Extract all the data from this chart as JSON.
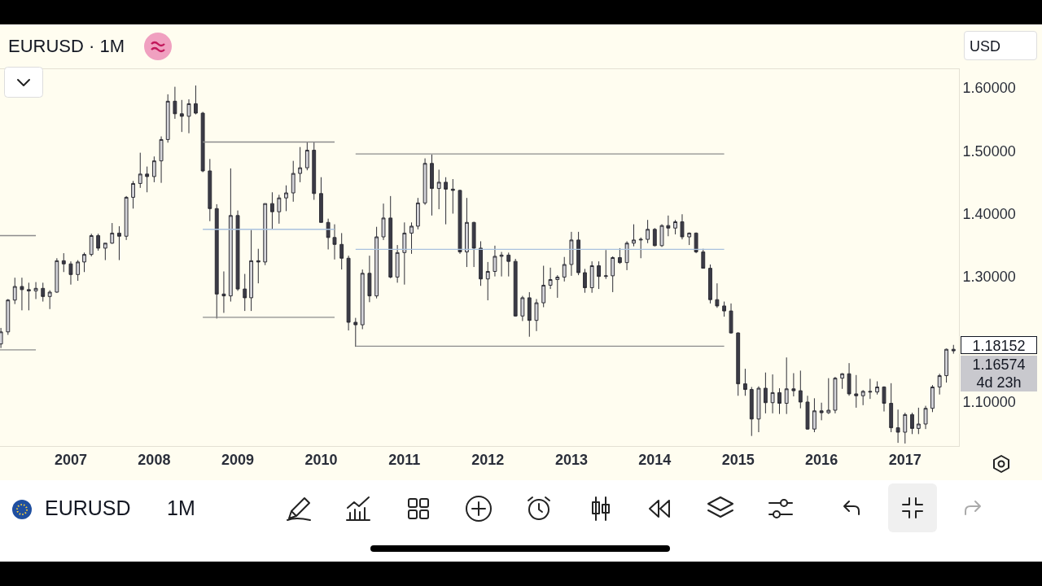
{
  "chart_data": {
    "type": "candlestick",
    "title": "EURUSD · 1M",
    "x": [
      "2006-03",
      "2006-04",
      "2006-05",
      "2006-06",
      "2006-07",
      "2006-08",
      "2006-09",
      "2006-10",
      "2006-11",
      "2006-12",
      "2007-01",
      "2007-02",
      "2007-03",
      "2007-04",
      "2007-05",
      "2007-06",
      "2007-07",
      "2007-08",
      "2007-09",
      "2007-10",
      "2007-11",
      "2007-12",
      "2008-01",
      "2008-02",
      "2008-03",
      "2008-04",
      "2008-05",
      "2008-06",
      "2008-07",
      "2008-08",
      "2008-09",
      "2008-10",
      "2008-11",
      "2008-12",
      "2009-01",
      "2009-02",
      "2009-03",
      "2009-04",
      "2009-05",
      "2009-06",
      "2009-07",
      "2009-08",
      "2009-09",
      "2009-10",
      "2009-11",
      "2009-12",
      "2010-01",
      "2010-02",
      "2010-03",
      "2010-04",
      "2010-05",
      "2010-06",
      "2010-07",
      "2010-08",
      "2010-09",
      "2010-10",
      "2010-11",
      "2010-12",
      "2011-01",
      "2011-02",
      "2011-03",
      "2011-04",
      "2011-05",
      "2011-06",
      "2011-07",
      "2011-08",
      "2011-09",
      "2011-10",
      "2011-11",
      "2011-12",
      "2012-01",
      "2012-02",
      "2012-03",
      "2012-04",
      "2012-05",
      "2012-06",
      "2012-07",
      "2012-08",
      "2012-09",
      "2012-10",
      "2012-11",
      "2012-12",
      "2013-01",
      "2013-02",
      "2013-03",
      "2013-04",
      "2013-05",
      "2013-06",
      "2013-07",
      "2013-08",
      "2013-09",
      "2013-10",
      "2013-11",
      "2013-12",
      "2014-01",
      "2014-02",
      "2014-03",
      "2014-04",
      "2014-05",
      "2014-06",
      "2014-07",
      "2014-08",
      "2014-09",
      "2014-10",
      "2014-11",
      "2014-12",
      "2015-01",
      "2015-02",
      "2015-03",
      "2015-04",
      "2015-05",
      "2015-06",
      "2015-07",
      "2015-08",
      "2015-09",
      "2015-10",
      "2015-11",
      "2015-12",
      "2016-01",
      "2016-02",
      "2016-03",
      "2016-04",
      "2016-05",
      "2016-06",
      "2016-07",
      "2016-08",
      "2016-09",
      "2016-10",
      "2016-11",
      "2016-12",
      "2017-01",
      "2017-02",
      "2017-03",
      "2017-04",
      "2017-05",
      "2017-06",
      "2017-07",
      "2017-08"
    ],
    "ohlc": [
      [
        1.1925,
        1.218,
        1.186,
        1.2117
      ],
      [
        1.2117,
        1.264,
        1.207,
        1.2624
      ],
      [
        1.2624,
        1.298,
        1.256,
        1.284
      ],
      [
        1.284,
        1.298,
        1.246,
        1.279
      ],
      [
        1.279,
        1.29,
        1.246,
        1.277
      ],
      [
        1.277,
        1.291,
        1.264,
        1.281
      ],
      [
        1.281,
        1.29,
        1.26,
        1.268
      ],
      [
        1.268,
        1.278,
        1.248,
        1.275
      ],
      [
        1.275,
        1.329,
        1.274,
        1.325
      ],
      [
        1.325,
        1.337,
        1.307,
        1.32
      ],
      [
        1.32,
        1.324,
        1.287,
        1.303
      ],
      [
        1.303,
        1.326,
        1.293,
        1.323
      ],
      [
        1.323,
        1.338,
        1.307,
        1.335
      ],
      [
        1.335,
        1.368,
        1.332,
        1.365
      ],
      [
        1.365,
        1.368,
        1.341,
        1.345
      ],
      [
        1.345,
        1.353,
        1.326,
        1.353
      ],
      [
        1.353,
        1.385,
        1.352,
        1.369
      ],
      [
        1.369,
        1.38,
        1.326,
        1.364
      ],
      [
        1.364,
        1.428,
        1.358,
        1.426
      ],
      [
        1.426,
        1.452,
        1.408,
        1.448
      ],
      [
        1.448,
        1.497,
        1.441,
        1.463
      ],
      [
        1.463,
        1.475,
        1.434,
        1.459
      ],
      [
        1.459,
        1.491,
        1.45,
        1.484
      ],
      [
        1.484,
        1.523,
        1.449,
        1.518
      ],
      [
        1.518,
        1.59,
        1.513,
        1.579
      ],
      [
        1.579,
        1.602,
        1.551,
        1.559
      ],
      [
        1.559,
        1.581,
        1.53,
        1.555
      ],
      [
        1.555,
        1.582,
        1.528,
        1.575
      ],
      [
        1.575,
        1.604,
        1.558,
        1.56
      ],
      [
        1.56,
        1.562,
        1.466,
        1.468
      ],
      [
        1.468,
        1.487,
        1.388,
        1.408
      ],
      [
        1.408,
        1.415,
        1.233,
        1.272
      ],
      [
        1.272,
        1.308,
        1.242,
        1.269
      ],
      [
        1.269,
        1.472,
        1.26,
        1.397
      ],
      [
        1.397,
        1.405,
        1.277,
        1.28
      ],
      [
        1.28,
        1.304,
        1.245,
        1.266
      ],
      [
        1.266,
        1.374,
        1.245,
        1.325
      ],
      [
        1.325,
        1.344,
        1.289,
        1.323
      ],
      [
        1.323,
        1.416,
        1.318,
        1.416
      ],
      [
        1.416,
        1.434,
        1.375,
        1.403
      ],
      [
        1.403,
        1.43,
        1.384,
        1.425
      ],
      [
        1.425,
        1.445,
        1.404,
        1.433
      ],
      [
        1.433,
        1.484,
        1.419,
        1.464
      ],
      [
        1.464,
        1.506,
        1.45,
        1.473
      ],
      [
        1.473,
        1.514,
        1.469,
        1.501
      ],
      [
        1.501,
        1.514,
        1.422,
        1.432
      ],
      [
        1.432,
        1.458,
        1.386,
        1.386
      ],
      [
        1.386,
        1.392,
        1.343,
        1.362
      ],
      [
        1.362,
        1.383,
        1.327,
        1.351
      ],
      [
        1.351,
        1.369,
        1.311,
        1.329
      ],
      [
        1.329,
        1.333,
        1.214,
        1.227
      ],
      [
        1.227,
        1.234,
        1.188,
        1.223
      ],
      [
        1.223,
        1.311,
        1.216,
        1.305
      ],
      [
        1.305,
        1.333,
        1.259,
        1.269
      ],
      [
        1.269,
        1.379,
        1.265,
        1.363
      ],
      [
        1.363,
        1.416,
        1.358,
        1.393
      ],
      [
        1.393,
        1.428,
        1.297,
        1.299
      ],
      [
        1.299,
        1.35,
        1.29,
        1.338
      ],
      [
        1.338,
        1.386,
        1.287,
        1.369
      ],
      [
        1.369,
        1.386,
        1.336,
        1.38
      ],
      [
        1.38,
        1.425,
        1.375,
        1.417
      ],
      [
        1.417,
        1.488,
        1.414,
        1.48
      ],
      [
        1.48,
        1.494,
        1.397,
        1.44
      ],
      [
        1.44,
        1.47,
        1.407,
        1.45
      ],
      [
        1.45,
        1.458,
        1.383,
        1.439
      ],
      [
        1.439,
        1.455,
        1.4,
        1.437
      ],
      [
        1.437,
        1.438,
        1.336,
        1.339
      ],
      [
        1.339,
        1.425,
        1.315,
        1.386
      ],
      [
        1.386,
        1.387,
        1.315,
        1.345
      ],
      [
        1.345,
        1.356,
        1.285,
        1.296
      ],
      [
        1.296,
        1.323,
        1.262,
        1.308
      ],
      [
        1.308,
        1.349,
        1.3,
        1.332
      ],
      [
        1.332,
        1.339,
        1.3,
        1.334
      ],
      [
        1.334,
        1.338,
        1.3,
        1.324
      ],
      [
        1.324,
        1.328,
        1.236,
        1.237
      ],
      [
        1.237,
        1.269,
        1.229,
        1.266
      ],
      [
        1.266,
        1.275,
        1.204,
        1.23
      ],
      [
        1.23,
        1.264,
        1.213,
        1.258
      ],
      [
        1.258,
        1.317,
        1.251,
        1.286
      ],
      [
        1.286,
        1.314,
        1.28,
        1.295
      ],
      [
        1.295,
        1.302,
        1.266,
        1.299
      ],
      [
        1.299,
        1.331,
        1.292,
        1.319
      ],
      [
        1.319,
        1.371,
        1.301,
        1.358
      ],
      [
        1.358,
        1.371,
        1.302,
        1.306
      ],
      [
        1.306,
        1.312,
        1.274,
        1.282
      ],
      [
        1.282,
        1.324,
        1.274,
        1.317
      ],
      [
        1.317,
        1.324,
        1.28,
        1.3
      ],
      [
        1.3,
        1.342,
        1.296,
        1.301
      ],
      [
        1.301,
        1.332,
        1.275,
        1.33
      ],
      [
        1.33,
        1.345,
        1.32,
        1.322
      ],
      [
        1.322,
        1.356,
        1.31,
        1.353
      ],
      [
        1.353,
        1.383,
        1.348,
        1.358
      ],
      [
        1.358,
        1.362,
        1.329,
        1.359
      ],
      [
        1.359,
        1.39,
        1.353,
        1.375
      ],
      [
        1.375,
        1.377,
        1.348,
        1.349
      ],
      [
        1.349,
        1.383,
        1.347,
        1.381
      ],
      [
        1.381,
        1.397,
        1.364,
        1.377
      ],
      [
        1.377,
        1.39,
        1.367,
        1.387
      ],
      [
        1.387,
        1.399,
        1.359,
        1.363
      ],
      [
        1.363,
        1.37,
        1.35,
        1.369
      ],
      [
        1.369,
        1.37,
        1.337,
        1.339
      ],
      [
        1.339,
        1.344,
        1.313,
        1.313
      ],
      [
        1.313,
        1.319,
        1.257,
        1.263
      ],
      [
        1.263,
        1.289,
        1.25,
        1.253
      ],
      [
        1.253,
        1.26,
        1.236,
        1.245
      ],
      [
        1.245,
        1.257,
        1.209,
        1.21
      ],
      [
        1.21,
        1.211,
        1.11,
        1.129
      ],
      [
        1.129,
        1.153,
        1.11,
        1.12
      ],
      [
        1.12,
        1.124,
        1.046,
        1.073
      ],
      [
        1.073,
        1.125,
        1.052,
        1.122
      ],
      [
        1.122,
        1.147,
        1.082,
        1.099
      ],
      [
        1.099,
        1.144,
        1.082,
        1.115
      ],
      [
        1.115,
        1.122,
        1.081,
        1.098
      ],
      [
        1.098,
        1.171,
        1.081,
        1.121
      ],
      [
        1.121,
        1.146,
        1.109,
        1.118
      ],
      [
        1.118,
        1.15,
        1.09,
        1.1
      ],
      [
        1.1,
        1.11,
        1.056,
        1.057
      ],
      [
        1.057,
        1.106,
        1.052,
        1.086
      ],
      [
        1.086,
        1.099,
        1.071,
        1.083
      ],
      [
        1.083,
        1.138,
        1.081,
        1.087
      ],
      [
        1.087,
        1.14,
        1.082,
        1.138
      ],
      [
        1.138,
        1.146,
        1.121,
        1.145
      ],
      [
        1.145,
        1.162,
        1.11,
        1.113
      ],
      [
        1.113,
        1.143,
        1.091,
        1.11
      ],
      [
        1.11,
        1.119,
        1.095,
        1.117
      ],
      [
        1.117,
        1.137,
        1.105,
        1.116
      ],
      [
        1.116,
        1.133,
        1.112,
        1.124
      ],
      [
        1.124,
        1.125,
        1.085,
        1.098
      ],
      [
        1.098,
        1.13,
        1.052,
        1.059
      ],
      [
        1.059,
        1.088,
        1.035,
        1.052
      ],
      [
        1.052,
        1.083,
        1.034,
        1.08
      ],
      [
        1.08,
        1.083,
        1.049,
        1.058
      ],
      [
        1.058,
        1.091,
        1.049,
        1.065
      ],
      [
        1.065,
        1.094,
        1.057,
        1.09
      ],
      [
        1.09,
        1.127,
        1.084,
        1.124
      ],
      [
        1.124,
        1.145,
        1.112,
        1.142
      ],
      [
        1.142,
        1.185,
        1.131,
        1.184
      ],
      [
        1.184,
        1.191,
        1.177,
        1.18152
      ]
    ],
    "xlim": [
      "2006-02-25",
      "2017-08-25"
    ],
    "ylim": [
      1.03,
      1.63
    ],
    "xticks": [
      "2007",
      "2008",
      "2009",
      "2010",
      "2011",
      "2012",
      "2013",
      "2014",
      "2015",
      "2016",
      "2017"
    ],
    "yticks": [
      {
        "value": 1.1,
        "label": "1.10000"
      },
      {
        "value": 1.3,
        "label": "1.30000"
      },
      {
        "value": 1.4,
        "label": "1.40000"
      },
      {
        "value": 1.5,
        "label": "1.50000"
      },
      {
        "value": 1.6,
        "label": "1.60000"
      }
    ],
    "series": [
      {
        "type": "line",
        "x": [
          "2008-08",
          "2010-03"
        ],
        "values": [
          1.514,
          1.514
        ],
        "color": "#8c8c8c"
      },
      {
        "type": "line",
        "x": [
          "2010-06",
          "2014-11"
        ],
        "values": [
          1.495,
          1.495
        ],
        "color": "#8c8c8c"
      },
      {
        "type": "line",
        "x": [
          "2008-08",
          "2010-03"
        ],
        "values": [
          1.235,
          1.235
        ],
        "color": "#8c8c8c"
      },
      {
        "type": "line",
        "x": [
          "2010-06",
          "2014-11"
        ],
        "values": [
          1.189,
          1.189
        ],
        "color": "#8c8c8c"
      },
      {
        "type": "line",
        "x": [
          "2008-08",
          "2010-03"
        ],
        "values": [
          1.375,
          1.375
        ],
        "color": "#a9c2de"
      },
      {
        "type": "line",
        "x": [
          "2010-06",
          "2014-11"
        ],
        "values": [
          1.343,
          1.343
        ],
        "color": "#a9c2de"
      },
      {
        "type": "line",
        "x": [
          "2006-02-25",
          "2006-08"
        ],
        "values": [
          1.365,
          1.365
        ],
        "color": "#8c8c8c"
      },
      {
        "type": "line",
        "x": [
          "2006-02-25",
          "2006-08"
        ],
        "values": [
          1.183,
          1.183
        ],
        "color": "#8c8c8c"
      }
    ],
    "annotations": [
      "1.18152",
      "1.16574",
      "4d 23h",
      "USD",
      "EURUSD",
      "1M"
    ]
  }
}
